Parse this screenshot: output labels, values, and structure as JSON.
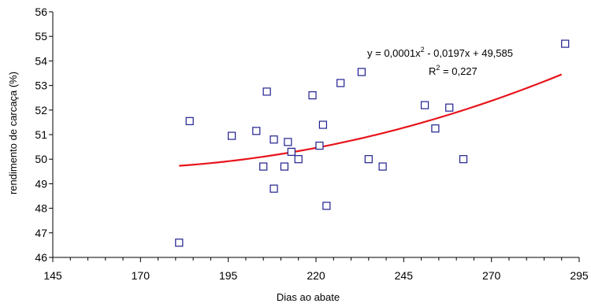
{
  "chart_data": {
    "type": "scatter",
    "title": "",
    "xlabel": "Dias ao abate",
    "ylabel": "rendimento de carcaça (%)",
    "xlim": [
      145,
      295
    ],
    "ylim": [
      46,
      56
    ],
    "xticks": [
      "145",
      "170",
      "195",
      "220",
      "245",
      "270",
      "295"
    ],
    "yticks": [
      "46",
      "47",
      "48",
      "49",
      "50",
      "51",
      "52",
      "53",
      "54",
      "55",
      "56"
    ],
    "grid": false,
    "colors": {
      "points": "#1f1f8f",
      "trendline": "#e8141b",
      "axes": "#000000"
    },
    "marker": "square-open",
    "points": [
      {
        "x": 181,
        "y": 46.6
      },
      {
        "x": 184,
        "y": 51.55
      },
      {
        "x": 196,
        "y": 50.95
      },
      {
        "x": 203,
        "y": 51.15
      },
      {
        "x": 205,
        "y": 49.7
      },
      {
        "x": 206,
        "y": 52.75
      },
      {
        "x": 208,
        "y": 50.8
      },
      {
        "x": 208,
        "y": 48.8
      },
      {
        "x": 211,
        "y": 49.7
      },
      {
        "x": 212,
        "y": 50.7
      },
      {
        "x": 213,
        "y": 50.3
      },
      {
        "x": 215,
        "y": 50.0
      },
      {
        "x": 219,
        "y": 52.6
      },
      {
        "x": 221,
        "y": 50.55
      },
      {
        "x": 222,
        "y": 51.4
      },
      {
        "x": 223,
        "y": 48.1
      },
      {
        "x": 227,
        "y": 53.1
      },
      {
        "x": 233,
        "y": 53.55
      },
      {
        "x": 235,
        "y": 50.0
      },
      {
        "x": 239,
        "y": 49.7
      },
      {
        "x": 251,
        "y": 52.2
      },
      {
        "x": 254,
        "y": 51.25
      },
      {
        "x": 258,
        "y": 52.1
      },
      {
        "x": 262,
        "y": 50.0
      },
      {
        "x": 291,
        "y": 54.7
      }
    ],
    "trendline": {
      "type": "polynomial",
      "x_range": [
        181,
        290
      ],
      "y_at_start": 49.73,
      "y_at_end": 53.45,
      "equation": {
        "prefix": "y = 0,0001x",
        "exp": "2",
        "suffix": " - 0,0197x + 49,585"
      },
      "r2": {
        "prefix": "R",
        "exp": "2",
        "suffix": " = 0,227"
      }
    }
  }
}
